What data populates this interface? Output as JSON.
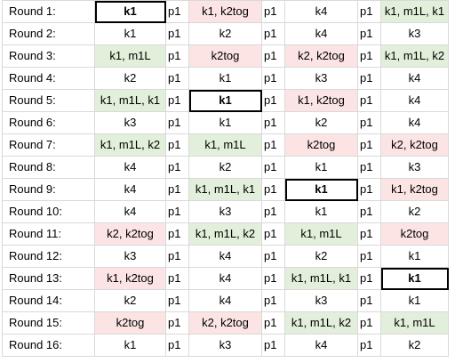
{
  "colors": {
    "increase_fill": "#e2efda",
    "decrease_fill": "#fce4e4",
    "grid_line": "#d9d9d9",
    "highlight_border": "#000000"
  },
  "rows": [
    {
      "label": "Round 1:",
      "cells": [
        {
          "text": "k1",
          "fill": "none",
          "bold": true
        },
        {
          "text": "p1"
        },
        {
          "text": "k1, k2tog",
          "fill": "red"
        },
        {
          "text": "p1"
        },
        {
          "text": "k4",
          "fill": "none"
        },
        {
          "text": "p1"
        },
        {
          "text": "k1, m1L, k1",
          "fill": "green"
        }
      ]
    },
    {
      "label": "Round 2:",
      "cells": [
        {
          "text": "k1",
          "fill": "none"
        },
        {
          "text": "p1"
        },
        {
          "text": "k2",
          "fill": "none"
        },
        {
          "text": "p1"
        },
        {
          "text": "k4",
          "fill": "none"
        },
        {
          "text": "p1"
        },
        {
          "text": "k3",
          "fill": "none"
        }
      ]
    },
    {
      "label": "Round 3:",
      "cells": [
        {
          "text": "k1, m1L",
          "fill": "green"
        },
        {
          "text": "p1"
        },
        {
          "text": "k2tog",
          "fill": "red"
        },
        {
          "text": "p1"
        },
        {
          "text": "k2, k2tog",
          "fill": "red"
        },
        {
          "text": "p1"
        },
        {
          "text": "k1, m1L, k2",
          "fill": "green"
        }
      ]
    },
    {
      "label": "Round 4:",
      "cells": [
        {
          "text": "k2",
          "fill": "none"
        },
        {
          "text": "p1"
        },
        {
          "text": "k1",
          "fill": "none"
        },
        {
          "text": "p1"
        },
        {
          "text": "k3",
          "fill": "none"
        },
        {
          "text": "p1"
        },
        {
          "text": "k4",
          "fill": "none"
        }
      ]
    },
    {
      "label": "Round 5:",
      "cells": [
        {
          "text": "k1, m1L, k1",
          "fill": "green"
        },
        {
          "text": "p1"
        },
        {
          "text": "k1",
          "fill": "none",
          "bold": true
        },
        {
          "text": "p1"
        },
        {
          "text": "k1, k2tog",
          "fill": "red"
        },
        {
          "text": "p1"
        },
        {
          "text": "k4",
          "fill": "none"
        }
      ]
    },
    {
      "label": "Round 6:",
      "cells": [
        {
          "text": "k3",
          "fill": "none"
        },
        {
          "text": "p1"
        },
        {
          "text": "k1",
          "fill": "none"
        },
        {
          "text": "p1"
        },
        {
          "text": "k2",
          "fill": "none"
        },
        {
          "text": "p1"
        },
        {
          "text": "k4",
          "fill": "none"
        }
      ]
    },
    {
      "label": "Round 7:",
      "cells": [
        {
          "text": "k1, m1L, k2",
          "fill": "green"
        },
        {
          "text": "p1"
        },
        {
          "text": "k1, m1L",
          "fill": "green"
        },
        {
          "text": "p1"
        },
        {
          "text": "k2tog",
          "fill": "red"
        },
        {
          "text": "p1"
        },
        {
          "text": "k2, k2tog",
          "fill": "red"
        }
      ]
    },
    {
      "label": "Round 8:",
      "cells": [
        {
          "text": "k4",
          "fill": "none"
        },
        {
          "text": "p1"
        },
        {
          "text": "k2",
          "fill": "none"
        },
        {
          "text": "p1"
        },
        {
          "text": "k1",
          "fill": "none"
        },
        {
          "text": "p1"
        },
        {
          "text": "k3",
          "fill": "none"
        }
      ]
    },
    {
      "label": "Round 9:",
      "cells": [
        {
          "text": "k4",
          "fill": "none"
        },
        {
          "text": "p1"
        },
        {
          "text": "k1, m1L, k1",
          "fill": "green"
        },
        {
          "text": "p1"
        },
        {
          "text": "k1",
          "fill": "none",
          "bold": true
        },
        {
          "text": "p1"
        },
        {
          "text": "k1, k2tog",
          "fill": "red"
        }
      ]
    },
    {
      "label": "Round 10:",
      "cells": [
        {
          "text": "k4",
          "fill": "none"
        },
        {
          "text": "p1"
        },
        {
          "text": "k3",
          "fill": "none"
        },
        {
          "text": "p1"
        },
        {
          "text": "k1",
          "fill": "none"
        },
        {
          "text": "p1"
        },
        {
          "text": "k2",
          "fill": "none"
        }
      ]
    },
    {
      "label": "Round 11:",
      "cells": [
        {
          "text": "k2, k2tog",
          "fill": "red"
        },
        {
          "text": "p1"
        },
        {
          "text": "k1, m1L, k2",
          "fill": "green"
        },
        {
          "text": "p1"
        },
        {
          "text": "k1, m1L",
          "fill": "green"
        },
        {
          "text": "p1"
        },
        {
          "text": "k2tog",
          "fill": "red"
        }
      ]
    },
    {
      "label": "Round 12:",
      "cells": [
        {
          "text": "k3",
          "fill": "none"
        },
        {
          "text": "p1"
        },
        {
          "text": "k4",
          "fill": "none"
        },
        {
          "text": "p1"
        },
        {
          "text": "k2",
          "fill": "none"
        },
        {
          "text": "p1"
        },
        {
          "text": "k1",
          "fill": "none"
        }
      ]
    },
    {
      "label": "Round 13:",
      "cells": [
        {
          "text": "k1, k2tog",
          "fill": "red"
        },
        {
          "text": "p1"
        },
        {
          "text": "k4",
          "fill": "none"
        },
        {
          "text": "p1"
        },
        {
          "text": "k1, m1L, k1",
          "fill": "green"
        },
        {
          "text": "p1"
        },
        {
          "text": "k1",
          "fill": "none",
          "bold": true
        }
      ]
    },
    {
      "label": "Round 14:",
      "cells": [
        {
          "text": "k2",
          "fill": "none"
        },
        {
          "text": "p1"
        },
        {
          "text": "k4",
          "fill": "none"
        },
        {
          "text": "p1"
        },
        {
          "text": "k3",
          "fill": "none"
        },
        {
          "text": "p1"
        },
        {
          "text": "k1",
          "fill": "none"
        }
      ]
    },
    {
      "label": "Round 15:",
      "cells": [
        {
          "text": "k2tog",
          "fill": "red"
        },
        {
          "text": "p1"
        },
        {
          "text": "k2, k2tog",
          "fill": "red"
        },
        {
          "text": "p1"
        },
        {
          "text": "k1, m1L, k2",
          "fill": "green"
        },
        {
          "text": "p1"
        },
        {
          "text": "k1, m1L",
          "fill": "green"
        }
      ]
    },
    {
      "label": "Round 16:",
      "cells": [
        {
          "text": "k1",
          "fill": "none"
        },
        {
          "text": "p1"
        },
        {
          "text": "k3",
          "fill": "none"
        },
        {
          "text": "p1"
        },
        {
          "text": "k4",
          "fill": "none"
        },
        {
          "text": "p1"
        },
        {
          "text": "k2",
          "fill": "none"
        }
      ]
    }
  ]
}
